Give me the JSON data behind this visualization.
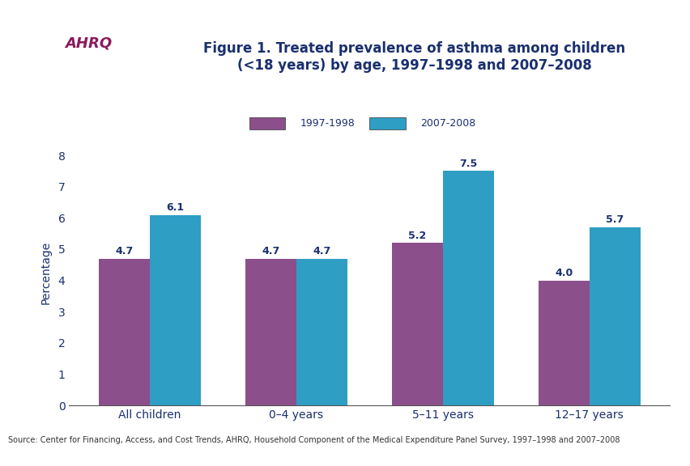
{
  "title_line1": "Figure 1. Treated prevalence of asthma among children",
  "title_line2": "(<18 years) by age, 1997–1998 and 2007–2008",
  "categories": [
    "All children",
    "0–4 years",
    "5–11 years",
    "12–17 years"
  ],
  "series": [
    {
      "label": "1997-1998",
      "values": [
        4.7,
        4.7,
        5.2,
        4.0
      ],
      "color": "#8B4F8B"
    },
    {
      "label": "2007-2008",
      "values": [
        6.1,
        4.7,
        7.5,
        5.7
      ],
      "color": "#2E9EC4"
    }
  ],
  "ylabel": "Percentage",
  "ylim": [
    0,
    8.5
  ],
  "yticks": [
    0,
    1,
    2,
    3,
    4,
    5,
    6,
    7,
    8
  ],
  "bar_width": 0.35,
  "source_text": "Source: Center for Financing, Access, and Cost Trends, AHRQ, Household Component of the Medical Expenditure Panel Survey, 1997–1998 and 2007–2008",
  "title_color": "#1A2F6E",
  "axis_label_color": "#1A2F6E",
  "tick_label_color": "#1A2F6E",
  "legend_color": "#1A2F6E",
  "source_color": "#333333",
  "top_bar_color": "#1A2F6E",
  "bottom_bar_color": "#1A2F6E",
  "bg_color": "#FFFFFF",
  "header_teal_color": "#1A8BA0"
}
